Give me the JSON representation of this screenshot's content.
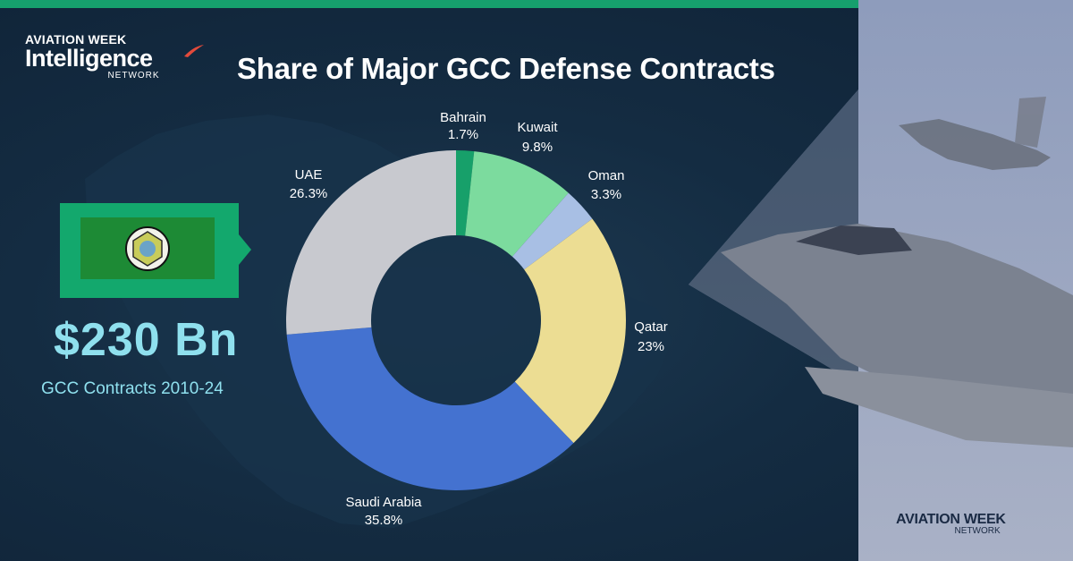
{
  "header": {
    "logo_line1": "AVIATION WEEK",
    "logo_line2": "Intelligence",
    "logo_line3": "NETWORK",
    "title": "Share of Major GCC Defense Contracts"
  },
  "stat": {
    "value": "$230 Bn",
    "label": "GCC Contracts 2010-24"
  },
  "footer": {
    "logo_line1": "AVIATION WEEK",
    "logo_line2": "NETWORK"
  },
  "colors": {
    "accent_green": "#16a06d",
    "stat_text": "#8fe0ee",
    "background": "#142c42"
  },
  "chart_data": {
    "type": "pie",
    "style": "donut",
    "title": "Share of Major GCC Defense Contracts",
    "unit": "%",
    "slices": [
      {
        "name": "Bahrain",
        "value": 1.7,
        "label": "1.7%",
        "color": "#17a06a"
      },
      {
        "name": "Kuwait",
        "value": 9.8,
        "label": "9.8%",
        "color": "#7cdb9e"
      },
      {
        "name": "Oman",
        "value": 3.3,
        "label": "3.3%",
        "color": "#a8bfe4"
      },
      {
        "name": "Qatar",
        "value": 23,
        "label": "23%",
        "color": "#ecdd93"
      },
      {
        "name": "Saudi Arabia",
        "value": 35.8,
        "label": "35.8%",
        "color": "#4472d0"
      },
      {
        "name": "UAE",
        "value": 26.3,
        "label": "26.3%",
        "color": "#c8c9cf"
      }
    ]
  }
}
